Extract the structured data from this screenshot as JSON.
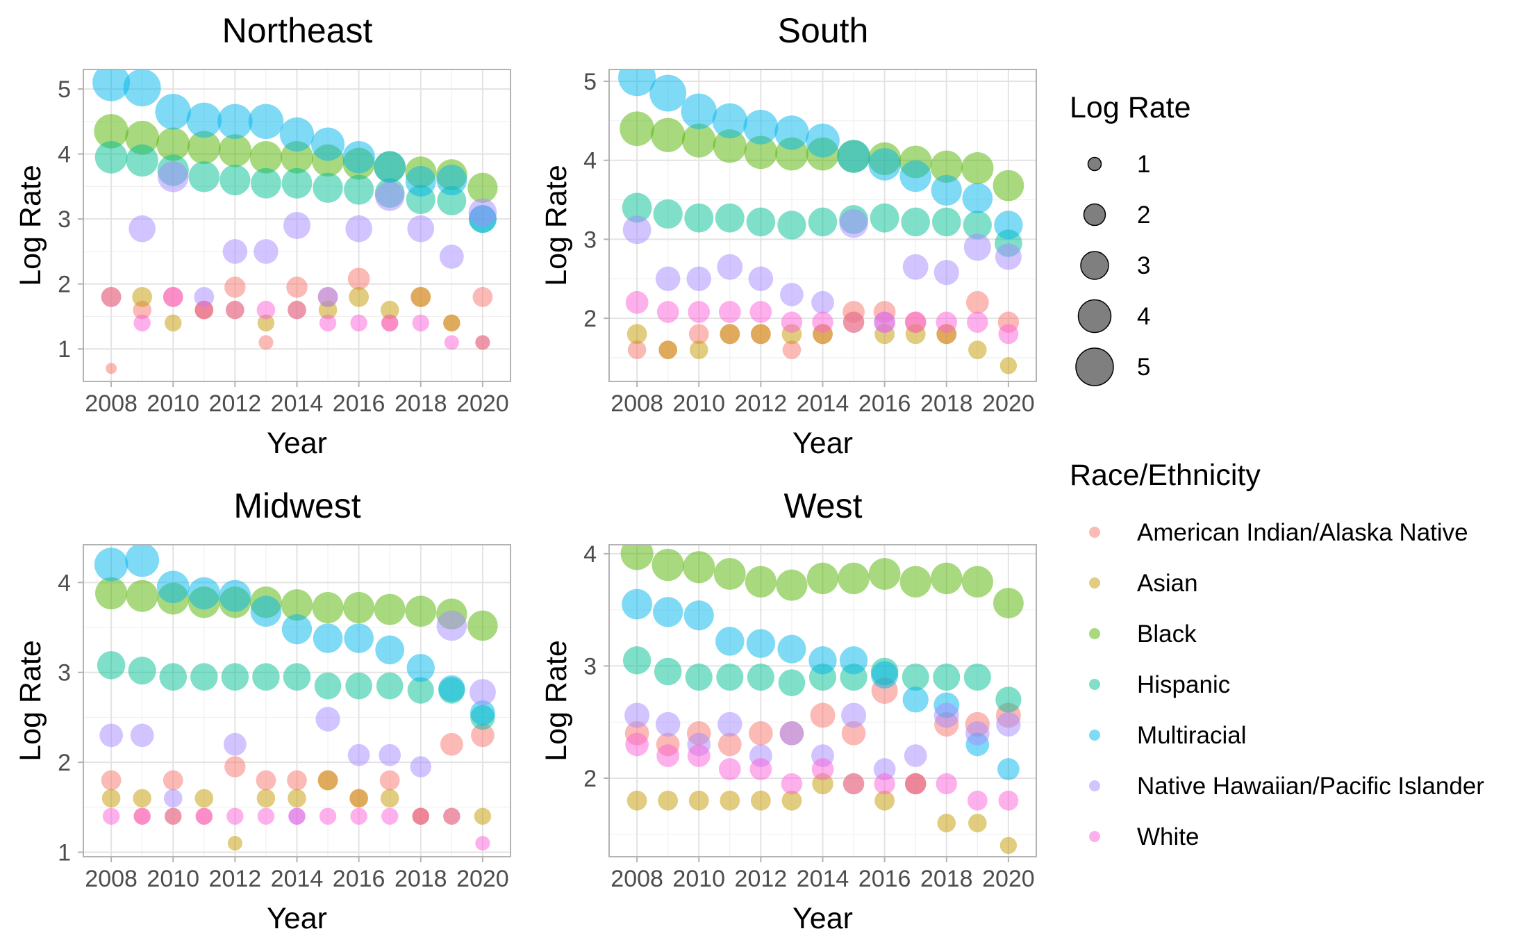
{
  "legend": {
    "size_title": "Log Rate",
    "size_values": [
      1,
      2,
      3,
      4,
      5
    ],
    "size_labels": [
      "1",
      "2",
      "3",
      "4",
      "5"
    ],
    "color_title": "Race/Ethnicity"
  },
  "series_meta": [
    {
      "key": "aian",
      "name": "American Indian/Alaska Native",
      "color": "#F8766D"
    },
    {
      "key": "asian",
      "name": "Asian",
      "color": "#C49A00"
    },
    {
      "key": "black",
      "name": "Black",
      "color": "#53B400"
    },
    {
      "key": "hispanic",
      "name": "Hispanic",
      "color": "#00C094"
    },
    {
      "key": "multiracial",
      "name": "Multiracial",
      "color": "#00B6EB"
    },
    {
      "key": "nhpi",
      "name": "Native Hawaiian/Pacific Islander",
      "color": "#A58AFF"
    },
    {
      "key": "white",
      "name": "White",
      "color": "#FB61D7"
    }
  ],
  "chart_data": [
    {
      "type": "scatter",
      "title": "Northeast",
      "xlabel": "Year",
      "ylabel": "Log Rate",
      "xlim": [
        2007.1,
        2020.9
      ],
      "ylim": [
        0.5,
        5.3
      ],
      "xticks": [
        2008,
        2010,
        2012,
        2014,
        2016,
        2018,
        2020
      ],
      "xtick_labels": [
        "2008",
        "2010",
        "2012",
        "2014",
        "2016",
        "2018",
        "2020"
      ],
      "yticks": [
        1,
        2,
        3,
        4,
        5
      ],
      "ytick_labels": [
        "1",
        "2",
        "3",
        "4",
        "5"
      ],
      "grid": true,
      "x": [
        2008,
        2009,
        2010,
        2011,
        2012,
        2013,
        2014,
        2015,
        2016,
        2017,
        2018,
        2019,
        2020
      ],
      "series": [
        {
          "name": "American Indian/Alaska Native",
          "values": [
            0.7,
            1.6,
            1.8,
            1.6,
            1.95,
            1.1,
            1.95,
            1.8,
            2.08,
            1.4,
            1.8,
            1.4,
            1.8
          ]
        },
        {
          "name": "Asian",
          "values": [
            1.8,
            1.8,
            1.4,
            1.6,
            1.6,
            1.4,
            1.6,
            1.6,
            1.8,
            1.6,
            1.8,
            1.4,
            1.1
          ]
        },
        {
          "name": "Black",
          "values": [
            4.35,
            4.25,
            4.15,
            4.1,
            4.05,
            3.95,
            3.95,
            3.9,
            3.85,
            3.8,
            3.72,
            3.68,
            3.48
          ]
        },
        {
          "name": "Hispanic",
          "values": [
            3.95,
            3.9,
            3.75,
            3.65,
            3.6,
            3.55,
            3.55,
            3.48,
            3.45,
            3.4,
            3.3,
            3.28,
            3.0
          ]
        },
        {
          "name": "Multiracial",
          "values": [
            5.1,
            5.02,
            4.65,
            4.52,
            4.5,
            4.5,
            4.3,
            4.15,
            3.95,
            3.8,
            3.58,
            3.6,
            3.0
          ]
        },
        {
          "name": "Native Hawaiian/Pacific Islander",
          "values": [
            null,
            2.85,
            3.65,
            1.8,
            2.5,
            2.5,
            2.9,
            1.8,
            2.85,
            3.35,
            2.85,
            2.42,
            3.1
          ]
        },
        {
          "name": "White",
          "values": [
            1.8,
            1.4,
            1.8,
            1.6,
            1.6,
            1.6,
            1.6,
            1.4,
            1.4,
            1.4,
            1.4,
            1.1,
            1.1
          ]
        }
      ]
    },
    {
      "type": "scatter",
      "title": "South",
      "xlabel": "Year",
      "ylabel": "Log Rate",
      "xlim": [
        2007.1,
        2020.9
      ],
      "ylim": [
        1.2,
        5.15
      ],
      "xticks": [
        2008,
        2010,
        2012,
        2014,
        2016,
        2018,
        2020
      ],
      "xtick_labels": [
        "2008",
        "2010",
        "2012",
        "2014",
        "2016",
        "2018",
        "2020"
      ],
      "yticks": [
        2,
        3,
        4,
        5
      ],
      "ytick_labels": [
        "2",
        "3",
        "4",
        "5"
      ],
      "grid": true,
      "x": [
        2008,
        2009,
        2010,
        2011,
        2012,
        2013,
        2014,
        2015,
        2016,
        2017,
        2018,
        2019,
        2020
      ],
      "series": [
        {
          "name": "American Indian/Alaska Native",
          "values": [
            1.6,
            1.6,
            1.8,
            1.8,
            1.8,
            1.6,
            1.8,
            2.08,
            2.08,
            1.95,
            1.8,
            2.2,
            1.95
          ]
        },
        {
          "name": "Asian",
          "values": [
            1.8,
            1.6,
            1.6,
            1.8,
            1.8,
            1.8,
            1.8,
            1.95,
            1.8,
            1.8,
            1.8,
            1.6,
            1.4
          ]
        },
        {
          "name": "Black",
          "values": [
            4.4,
            4.32,
            4.25,
            4.18,
            4.1,
            4.08,
            4.08,
            4.05,
            4.02,
            3.98,
            3.92,
            3.9,
            3.68
          ]
        },
        {
          "name": "Hispanic",
          "values": [
            3.4,
            3.32,
            3.27,
            3.27,
            3.22,
            3.18,
            3.22,
            3.25,
            3.27,
            3.22,
            3.22,
            3.18,
            2.95
          ]
        },
        {
          "name": "Multiracial",
          "values": [
            5.05,
            4.85,
            4.62,
            4.5,
            4.42,
            4.35,
            4.25,
            4.05,
            3.95,
            3.8,
            3.62,
            3.52,
            3.18
          ]
        },
        {
          "name": "Native Hawaiian/Pacific Islander",
          "values": [
            3.12,
            2.5,
            2.5,
            2.65,
            2.5,
            2.3,
            2.2,
            3.2,
            1.95,
            2.65,
            2.58,
            2.9,
            2.78
          ]
        },
        {
          "name": "White",
          "values": [
            2.2,
            2.08,
            2.08,
            2.08,
            2.08,
            1.95,
            1.95,
            1.95,
            1.95,
            1.95,
            1.95,
            1.95,
            1.8
          ]
        }
      ]
    },
    {
      "type": "scatter",
      "title": "Midwest",
      "xlabel": "Year",
      "ylabel": "Log Rate",
      "xlim": [
        2007.1,
        2020.9
      ],
      "ylim": [
        0.95,
        4.42
      ],
      "xticks": [
        2008,
        2010,
        2012,
        2014,
        2016,
        2018,
        2020
      ],
      "xtick_labels": [
        "2008",
        "2010",
        "2012",
        "2014",
        "2016",
        "2018",
        "2020"
      ],
      "yticks": [
        1,
        2,
        3,
        4
      ],
      "ytick_labels": [
        "1",
        "2",
        "3",
        "4"
      ],
      "grid": true,
      "x": [
        2008,
        2009,
        2010,
        2011,
        2012,
        2013,
        2014,
        2015,
        2016,
        2017,
        2018,
        2019,
        2020
      ],
      "series": [
        {
          "name": "American Indian/Alaska Native",
          "values": [
            1.8,
            1.4,
            1.8,
            1.4,
            1.95,
            1.8,
            1.8,
            1.8,
            1.6,
            1.8,
            1.4,
            2.2,
            2.3
          ]
        },
        {
          "name": "Asian",
          "values": [
            1.6,
            1.6,
            1.4,
            1.6,
            1.1,
            1.6,
            1.6,
            1.8,
            1.6,
            1.6,
            1.4,
            1.4,
            1.4
          ]
        },
        {
          "name": "Black",
          "values": [
            3.88,
            3.85,
            3.82,
            3.78,
            3.78,
            3.78,
            3.75,
            3.72,
            3.72,
            3.7,
            3.68,
            3.65,
            3.52
          ]
        },
        {
          "name": "Hispanic",
          "values": [
            3.08,
            3.02,
            2.95,
            2.95,
            2.95,
            2.95,
            2.95,
            2.85,
            2.85,
            2.85,
            2.8,
            2.8,
            2.5
          ]
        },
        {
          "name": "Multiracial",
          "values": [
            4.2,
            4.25,
            3.95,
            3.88,
            3.85,
            3.68,
            3.48,
            3.38,
            3.38,
            3.25,
            3.05,
            2.82,
            2.55
          ]
        },
        {
          "name": "Native Hawaiian/Pacific Islander",
          "values": [
            2.3,
            2.3,
            1.6,
            null,
            2.2,
            null,
            1.4,
            2.48,
            2.08,
            2.08,
            1.95,
            3.52,
            2.78
          ]
        },
        {
          "name": "White",
          "values": [
            1.4,
            1.4,
            1.4,
            1.4,
            1.4,
            1.4,
            1.4,
            1.4,
            1.4,
            1.4,
            1.4,
            1.4,
            1.1
          ]
        }
      ]
    },
    {
      "type": "scatter",
      "title": "West",
      "xlabel": "Year",
      "ylabel": "Log Rate",
      "xlim": [
        2007.1,
        2020.9
      ],
      "ylim": [
        1.3,
        4.08
      ],
      "xticks": [
        2008,
        2010,
        2012,
        2014,
        2016,
        2018,
        2020
      ],
      "xtick_labels": [
        "2008",
        "2010",
        "2012",
        "2014",
        "2016",
        "2018",
        "2020"
      ],
      "yticks": [
        2,
        3,
        4
      ],
      "ytick_labels": [
        "2",
        "3",
        "4"
      ],
      "grid": true,
      "x": [
        2008,
        2009,
        2010,
        2011,
        2012,
        2013,
        2014,
        2015,
        2016,
        2017,
        2018,
        2019,
        2020
      ],
      "series": [
        {
          "name": "American Indian/Alaska Native",
          "values": [
            2.4,
            2.3,
            2.4,
            2.3,
            2.4,
            2.4,
            2.56,
            2.4,
            2.78,
            1.95,
            2.48,
            2.48,
            2.56
          ]
        },
        {
          "name": "Asian",
          "values": [
            1.8,
            1.8,
            1.8,
            1.8,
            1.8,
            1.8,
            1.95,
            1.95,
            1.8,
            1.95,
            1.6,
            1.6,
            1.4
          ]
        },
        {
          "name": "Black",
          "values": [
            4.0,
            3.9,
            3.88,
            3.82,
            3.75,
            3.72,
            3.78,
            3.78,
            3.82,
            3.75,
            3.78,
            3.75,
            3.56
          ]
        },
        {
          "name": "Hispanic",
          "values": [
            3.05,
            2.95,
            2.9,
            2.9,
            2.9,
            2.85,
            2.9,
            2.9,
            2.95,
            2.9,
            2.9,
            2.9,
            2.7
          ]
        },
        {
          "name": "Multiracial",
          "values": [
            3.55,
            3.48,
            3.45,
            3.22,
            3.2,
            3.15,
            3.05,
            3.05,
            2.92,
            2.7,
            2.65,
            2.3,
            2.08
          ]
        },
        {
          "name": "Native Hawaiian/Pacific Islander",
          "values": [
            2.56,
            2.48,
            2.3,
            2.48,
            2.2,
            2.4,
            2.2,
            2.56,
            2.08,
            2.2,
            2.56,
            2.4,
            2.48
          ]
        },
        {
          "name": "White",
          "values": [
            2.3,
            2.2,
            2.2,
            2.08,
            2.08,
            1.95,
            2.08,
            1.95,
            1.95,
            1.95,
            1.95,
            1.8,
            1.8
          ]
        }
      ]
    }
  ]
}
